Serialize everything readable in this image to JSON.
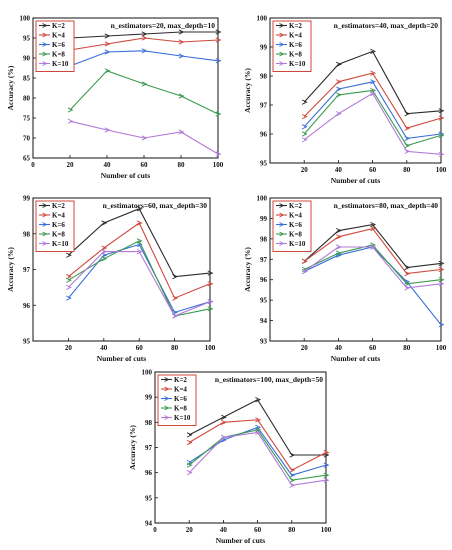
{
  "colors": {
    "K=2": "#2b2b2b",
    "K=4": "#d0473a",
    "K=6": "#3b6fd6",
    "K=8": "#3a9a4e",
    "K=10": "#b07ad8",
    "legend_border": "#d0473a",
    "axis": "#111111"
  },
  "chart_data": [
    {
      "type": "line",
      "title": "n_estimators=20, max_depth=10",
      "xlabel": "Number of cuts",
      "ylabel": "Accuracy (%)",
      "xlim": [
        0,
        100
      ],
      "ylim": [
        65,
        100
      ],
      "xticks": [
        0,
        20,
        40,
        60,
        80,
        100
      ],
      "yticks": [
        65,
        70,
        75,
        80,
        85,
        90,
        95,
        100
      ],
      "legend_position": "top-left",
      "x": [
        20,
        40,
        60,
        80,
        100
      ],
      "series": [
        {
          "name": "K=2",
          "values": [
            95.0,
            95.5,
            96.0,
            96.5,
            96.5
          ]
        },
        {
          "name": "K=4",
          "values": [
            92.0,
            93.5,
            95.0,
            94.0,
            94.5
          ]
        },
        {
          "name": "K=6",
          "values": [
            88.0,
            91.5,
            91.8,
            90.5,
            89.3
          ]
        },
        {
          "name": "K=8",
          "values": [
            77.0,
            86.8,
            83.5,
            80.5,
            76.0
          ]
        },
        {
          "name": "K=10",
          "values": [
            74.2,
            72.0,
            70.0,
            71.5,
            66.0
          ]
        }
      ]
    },
    {
      "type": "line",
      "title": "n_estimators=40, max_depth=20",
      "xlabel": "Number of cuts",
      "ylabel": "Accuracy (%)",
      "xlim": [
        0,
        100
      ],
      "ylim": [
        95,
        100
      ],
      "xticks": [
        20,
        40,
        60,
        80,
        100
      ],
      "yticks": [
        95,
        96,
        97,
        98,
        99,
        100
      ],
      "legend_position": "top-left",
      "x": [
        20,
        40,
        60,
        80,
        100
      ],
      "series": [
        {
          "name": "K=2",
          "values": [
            97.1,
            98.4,
            98.85,
            96.7,
            96.8
          ]
        },
        {
          "name": "K=4",
          "values": [
            96.6,
            97.8,
            98.1,
            96.2,
            96.55
          ]
        },
        {
          "name": "K=6",
          "values": [
            96.25,
            97.55,
            97.8,
            95.85,
            96.0
          ]
        },
        {
          "name": "K=8",
          "values": [
            96.0,
            97.35,
            97.5,
            95.6,
            95.95
          ]
        },
        {
          "name": "K=10",
          "values": [
            95.8,
            96.7,
            97.4,
            95.4,
            95.3
          ]
        }
      ]
    },
    {
      "type": "line",
      "title": "n_estimators=60, max_depth=30",
      "xlabel": "Number of cuts",
      "ylabel": "Accuracy (%)",
      "xlim": [
        0,
        100
      ],
      "ylim": [
        95,
        99
      ],
      "xticks": [
        20,
        40,
        60,
        80,
        100
      ],
      "yticks": [
        95,
        96,
        97,
        98,
        99
      ],
      "legend_position": "top-left",
      "x": [
        20,
        40,
        60,
        80,
        100
      ],
      "series": [
        {
          "name": "K=2",
          "values": [
            97.4,
            98.3,
            98.7,
            96.8,
            96.9
          ]
        },
        {
          "name": "K=4",
          "values": [
            96.8,
            97.6,
            98.3,
            96.2,
            96.6
          ]
        },
        {
          "name": "K=6",
          "values": [
            96.2,
            97.4,
            97.7,
            95.8,
            96.1
          ]
        },
        {
          "name": "K=8",
          "values": [
            96.7,
            97.3,
            97.8,
            95.7,
            95.9
          ]
        },
        {
          "name": "K=10",
          "values": [
            96.5,
            97.5,
            97.5,
            95.7,
            96.1
          ]
        }
      ]
    },
    {
      "type": "line",
      "title": "n_estimators=80, max_depth=40",
      "xlabel": "Number of cuts",
      "ylabel": "Accuracy (%)",
      "xlim": [
        0,
        100
      ],
      "ylim": [
        93,
        100
      ],
      "xticks": [
        20,
        40,
        60,
        80,
        100
      ],
      "yticks": [
        93,
        94,
        95,
        96,
        97,
        98,
        99,
        100
      ],
      "legend_position": "top-left",
      "x": [
        20,
        40,
        60,
        80,
        100
      ],
      "series": [
        {
          "name": "K=2",
          "values": [
            96.9,
            98.4,
            98.7,
            96.6,
            96.8
          ]
        },
        {
          "name": "K=4",
          "values": [
            96.9,
            98.1,
            98.5,
            96.3,
            96.5
          ]
        },
        {
          "name": "K=6",
          "values": [
            96.4,
            97.2,
            97.6,
            95.9,
            93.8
          ]
        },
        {
          "name": "K=8",
          "values": [
            96.5,
            97.3,
            97.7,
            95.8,
            96.0
          ]
        },
        {
          "name": "K=10",
          "values": [
            96.4,
            97.6,
            97.6,
            95.6,
            95.8
          ]
        }
      ]
    },
    {
      "type": "line",
      "title": "n_estimators=100, max_depth=50",
      "xlabel": "Number of cuts",
      "ylabel": "Accuracy (%)",
      "xlim": [
        0,
        100
      ],
      "ylim": [
        94,
        100
      ],
      "xticks": [
        0,
        20,
        40,
        60,
        80,
        100
      ],
      "yticks": [
        94,
        95,
        96,
        97,
        98,
        99,
        100
      ],
      "legend_position": "top-left",
      "x": [
        20,
        40,
        60,
        80,
        100
      ],
      "series": [
        {
          "name": "K=2",
          "values": [
            97.5,
            98.2,
            98.9,
            96.7,
            96.7
          ]
        },
        {
          "name": "K=4",
          "values": [
            97.2,
            98.0,
            98.1,
            96.1,
            96.8
          ]
        },
        {
          "name": "K=6",
          "values": [
            96.4,
            97.3,
            97.8,
            95.9,
            96.3
          ]
        },
        {
          "name": "K=8",
          "values": [
            96.3,
            97.4,
            97.7,
            95.7,
            95.9
          ]
        },
        {
          "name": "K=10",
          "values": [
            96.0,
            97.4,
            97.6,
            95.5,
            95.7
          ]
        }
      ]
    }
  ]
}
